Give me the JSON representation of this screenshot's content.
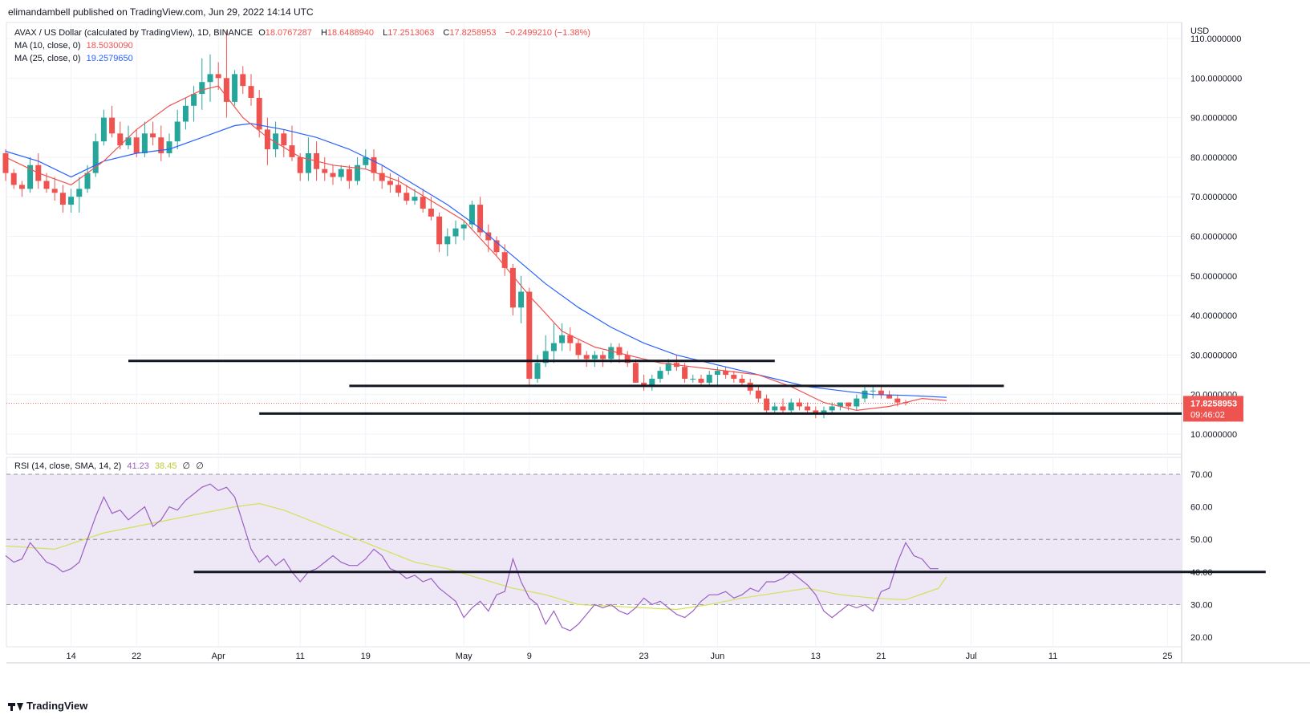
{
  "header": {
    "publisher": "elimandambell published on TradingView.com, Jun 29, 2022 14:14 UTC"
  },
  "legend": {
    "symbol": "AVAX / US Dollar (calculated by TradingView), 1D, BINANCE",
    "o_label": "O",
    "o": "18.0767287",
    "h_label": "H",
    "h": "18.6488940",
    "l_label": "L",
    "l": "17.2513063",
    "c_label": "C",
    "c": "17.8258953",
    "change": "−0.2499210 (−1.38%)",
    "ma10_label": "MA (10, close, 0)",
    "ma10_value": "18.5030090",
    "ma25_label": "MA (25, close, 0)",
    "ma25_value": "19.2579650",
    "rsi_label": "RSI (14, close, SMA, 14, 2)",
    "rsi_value": "41.23",
    "rsi_sma_value": "38.45",
    "rsi_extra1": "∅",
    "rsi_extra2": "∅"
  },
  "price_axis": {
    "currency": "USD",
    "last_price": "17.8258953",
    "countdown": "09:46:02"
  },
  "footer": {
    "brand": "TradingView"
  },
  "colors": {
    "up": "#26a69a",
    "down": "#ef5350",
    "ma10": "#ef5350",
    "ma25": "#2962ff",
    "rsi": "#9c5fc4",
    "rsi_sma": "#d4e157",
    "rsi_band": "#ede7f6",
    "price_label": "#ef5350"
  },
  "chart_data": [
    {
      "type": "candlestick",
      "title": "AVAX / US Dollar (calculated by TradingView), 1D, BINANCE",
      "ylim": [
        8,
        112
      ],
      "y_ticks": [
        "10.0000000",
        "20.0000000",
        "30.0000000",
        "40.0000000",
        "50.0000000",
        "60.0000000",
        "70.0000000",
        "80.0000000",
        "90.0000000",
        "100.0000000",
        "110.0000000"
      ],
      "y_tick_values": [
        10,
        20,
        30,
        40,
        50,
        60,
        70,
        80,
        90,
        100,
        110
      ],
      "x_ticks": [
        "14",
        "22",
        "Apr",
        "11",
        "19",
        "May",
        "9",
        "23",
        "Jun",
        "13",
        "21",
        "Jul",
        "11",
        "25"
      ],
      "x_tick_days": [
        14,
        22,
        32,
        42,
        50,
        62,
        70,
        84,
        93,
        105,
        113,
        124,
        134,
        148
      ],
      "first_day": 6,
      "ohlc": [
        [
          81,
          82,
          74,
          76
        ],
        [
          76,
          77,
          72,
          73
        ],
        [
          73,
          74,
          70,
          72
        ],
        [
          72,
          80,
          71,
          78
        ],
        [
          78,
          81,
          72,
          74
        ],
        [
          74,
          76,
          71,
          72
        ],
        [
          72,
          75,
          69,
          71
        ],
        [
          71,
          73,
          66,
          68
        ],
        [
          68,
          72,
          66,
          70
        ],
        [
          70,
          75,
          66,
          72
        ],
        [
          72,
          78,
          71,
          76
        ],
        [
          76,
          86,
          75,
          84
        ],
        [
          84,
          92,
          83,
          90
        ],
        [
          90,
          93,
          85,
          86
        ],
        [
          86,
          89,
          82,
          83
        ],
        [
          83,
          88,
          82,
          85
        ],
        [
          85,
          87,
          80,
          81
        ],
        [
          81,
          89,
          80,
          86
        ],
        [
          86,
          89,
          83,
          85
        ],
        [
          85,
          88,
          79,
          81
        ],
        [
          81,
          86,
          80,
          84
        ],
        [
          84,
          92,
          82,
          89
        ],
        [
          89,
          95,
          87,
          93
        ],
        [
          93,
          98,
          89,
          96
        ],
        [
          96,
          105,
          92,
          99
        ],
        [
          99,
          106,
          94,
          101
        ],
        [
          101,
          104,
          97,
          100
        ],
        [
          100,
          112,
          90,
          94
        ],
        [
          94,
          102,
          93,
          101
        ],
        [
          101,
          103,
          96,
          98
        ],
        [
          98,
          101,
          93,
          95
        ],
        [
          95,
          97,
          85,
          87
        ],
        [
          87,
          90,
          78,
          82
        ],
        [
          82,
          89,
          80,
          86
        ],
        [
          86,
          87,
          80,
          83
        ],
        [
          83,
          88,
          79,
          80
        ],
        [
          80,
          81,
          74,
          76
        ],
        [
          76,
          85,
          74,
          81
        ],
        [
          81,
          84,
          74,
          77
        ],
        [
          77,
          80,
          74,
          76
        ],
        [
          76,
          78,
          73,
          75
        ],
        [
          75,
          78,
          74,
          77
        ],
        [
          77,
          78,
          72,
          74
        ],
        [
          74,
          80,
          73,
          78
        ],
        [
          78,
          82,
          77,
          80
        ],
        [
          80,
          82,
          74,
          76
        ],
        [
          76,
          78,
          72,
          74
        ],
        [
          74,
          76,
          71,
          73
        ],
        [
          73,
          75,
          70,
          71
        ],
        [
          71,
          73,
          68,
          69
        ],
        [
          69,
          72,
          68,
          70
        ],
        [
          70,
          72,
          66,
          67
        ],
        [
          67,
          70,
          64,
          65
        ],
        [
          65,
          66,
          56,
          58
        ],
        [
          58,
          62,
          55,
          60
        ],
        [
          60,
          64,
          58,
          62
        ],
        [
          62,
          64,
          59,
          63
        ],
        [
          63,
          69,
          62,
          68
        ],
        [
          68,
          70,
          60,
          61
        ],
        [
          61,
          63,
          56,
          59
        ],
        [
          59,
          60,
          55,
          56
        ],
        [
          56,
          58,
          50,
          52
        ],
        [
          52,
          53,
          40,
          42
        ],
        [
          42,
          50,
          38,
          46
        ],
        [
          46,
          47,
          22,
          24
        ],
        [
          24,
          30,
          23,
          28
        ],
        [
          28,
          35,
          27,
          31
        ],
        [
          31,
          38,
          28,
          33
        ],
        [
          33,
          38,
          31,
          35
        ],
        [
          35,
          37,
          31,
          33
        ],
        [
          33,
          34,
          29,
          30
        ],
        [
          30,
          31,
          27,
          29
        ],
        [
          29,
          31,
          27,
          30
        ],
        [
          30,
          31,
          27,
          29
        ],
        [
          29,
          33,
          28,
          32
        ],
        [
          32,
          33,
          28,
          30
        ],
        [
          30,
          31,
          27,
          28
        ],
        [
          28,
          29,
          23,
          23
        ],
        [
          23,
          25,
          21,
          22
        ],
        [
          22,
          25,
          21,
          24
        ],
        [
          24,
          27,
          23,
          26
        ],
        [
          26,
          29,
          25,
          28
        ],
        [
          28,
          30,
          26,
          27
        ],
        [
          27,
          28,
          23,
          24
        ],
        [
          24,
          25,
          23,
          24
        ],
        [
          24,
          25,
          22,
          23
        ],
        [
          23,
          26,
          22,
          25
        ],
        [
          25,
          27,
          22,
          26
        ],
        [
          26,
          27,
          24,
          25
        ],
        [
          25,
          26,
          23,
          24
        ],
        [
          24,
          25,
          22,
          23
        ],
        [
          23,
          24,
          20,
          21
        ],
        [
          21,
          22,
          18,
          19
        ],
        [
          19,
          20,
          15,
          16
        ],
        [
          16,
          18,
          15,
          17
        ],
        [
          17,
          19,
          15,
          16
        ],
        [
          16,
          19,
          15,
          18
        ],
        [
          18,
          19,
          16,
          17
        ],
        [
          17,
          18,
          15,
          16
        ],
        [
          16,
          17,
          14,
          15
        ],
        [
          15,
          17,
          14,
          16
        ],
        [
          16,
          18,
          15,
          17
        ],
        [
          17,
          18,
          16,
          18
        ],
        [
          18,
          18,
          16,
          17
        ],
        [
          17,
          20,
          16,
          19
        ],
        [
          19,
          22,
          18,
          21
        ],
        [
          21,
          22,
          19,
          21
        ],
        [
          21,
          22,
          19,
          20
        ],
        [
          20,
          21,
          19,
          19
        ],
        [
          19,
          20,
          17,
          18
        ],
        [
          18.08,
          18.65,
          17.25,
          17.83
        ]
      ],
      "ma10": [
        [
          6,
          80
        ],
        [
          10,
          76
        ],
        [
          14,
          73
        ],
        [
          18,
          79
        ],
        [
          22,
          87
        ],
        [
          26,
          93
        ],
        [
          30,
          97
        ],
        [
          32,
          98
        ],
        [
          35,
          90
        ],
        [
          38,
          85
        ],
        [
          42,
          80
        ],
        [
          46,
          78
        ],
        [
          50,
          77
        ],
        [
          54,
          74
        ],
        [
          58,
          69
        ],
        [
          62,
          64
        ],
        [
          66,
          55
        ],
        [
          70,
          45
        ],
        [
          74,
          36
        ],
        [
          78,
          32
        ],
        [
          82,
          30
        ],
        [
          86,
          28
        ],
        [
          90,
          27
        ],
        [
          94,
          26
        ],
        [
          98,
          25
        ],
        [
          102,
          22
        ],
        [
          106,
          18
        ],
        [
          110,
          16
        ],
        [
          114,
          17
        ],
        [
          118,
          19
        ],
        [
          121,
          18.5
        ]
      ],
      "ma25": [
        [
          6,
          81.5
        ],
        [
          10,
          79
        ],
        [
          14,
          75
        ],
        [
          18,
          79
        ],
        [
          22,
          81
        ],
        [
          26,
          82
        ],
        [
          30,
          85
        ],
        [
          34,
          88
        ],
        [
          36,
          88.5
        ],
        [
          40,
          87
        ],
        [
          44,
          85
        ],
        [
          48,
          82
        ],
        [
          52,
          78
        ],
        [
          56,
          73
        ],
        [
          60,
          68
        ],
        [
          64,
          62
        ],
        [
          68,
          55
        ],
        [
          72,
          48
        ],
        [
          76,
          42
        ],
        [
          80,
          37
        ],
        [
          84,
          33
        ],
        [
          88,
          30
        ],
        [
          92,
          28
        ],
        [
          96,
          26
        ],
        [
          100,
          24
        ],
        [
          104,
          22
        ],
        [
          108,
          21
        ],
        [
          112,
          20
        ],
        [
          116,
          19.8
        ],
        [
          121,
          19.3
        ]
      ],
      "levels": [
        {
          "value": 28.5,
          "from_day": 21,
          "to_day": 100
        },
        {
          "value": 22.2,
          "from_day": 48,
          "to_day": 128
        },
        {
          "value": 15.2,
          "from_day": 37,
          "to_day": 152
        }
      ]
    },
    {
      "type": "line",
      "title": "RSI (14, close, SMA, 14, 2)",
      "ylim": [
        18,
        74
      ],
      "y_ticks": [
        "20.00",
        "30.00",
        "40.00",
        "50.00",
        "60.00",
        "70.00"
      ],
      "y_tick_values": [
        20,
        30,
        40,
        50,
        60,
        70
      ],
      "bands": {
        "upper": 70,
        "middle": 50,
        "lower": 30
      },
      "series": [
        {
          "id": "rsi",
          "values": [
            45,
            43,
            44,
            49,
            46,
            43,
            42,
            40,
            41,
            43,
            50,
            57,
            63,
            58,
            59,
            56,
            58,
            60,
            54,
            56,
            60,
            59,
            62,
            64,
            66,
            67,
            65,
            66,
            63,
            55,
            47,
            43,
            45,
            42,
            44,
            40,
            37,
            40,
            41,
            43,
            45,
            43,
            42,
            42,
            44,
            47,
            45,
            41,
            40,
            38,
            39,
            37,
            38,
            35,
            33,
            31,
            26,
            29,
            31,
            28,
            33,
            34,
            44,
            37,
            32,
            30,
            24,
            28,
            23,
            22,
            24,
            27,
            30,
            29,
            30,
            28,
            27,
            29,
            32,
            30,
            31,
            29,
            27,
            26,
            28,
            31,
            33,
            33,
            34,
            32,
            33,
            35,
            34,
            37,
            37,
            38,
            40,
            38,
            36,
            33,
            28,
            26,
            28,
            30,
            29,
            30,
            28,
            34,
            35,
            43,
            49,
            45,
            44,
            41,
            41
          ]
        },
        {
          "id": "rsi-sma",
          "points": [
            [
              6,
              48
            ],
            [
              12,
              47
            ],
            [
              18,
              52
            ],
            [
              24,
              55
            ],
            [
              30,
              58
            ],
            [
              34,
              60
            ],
            [
              37,
              61
            ],
            [
              40,
              59
            ],
            [
              44,
              55
            ],
            [
              48,
              51
            ],
            [
              52,
              47
            ],
            [
              56,
              43
            ],
            [
              60,
              41
            ],
            [
              64,
              38
            ],
            [
              68,
              35
            ],
            [
              72,
              33
            ],
            [
              76,
              30
            ],
            [
              80,
              29.5
            ],
            [
              84,
              29
            ],
            [
              88,
              28.5
            ],
            [
              92,
              30
            ],
            [
              96,
              32
            ],
            [
              100,
              33.5
            ],
            [
              104,
              35
            ],
            [
              108,
              33
            ],
            [
              112,
              32
            ],
            [
              116,
              31.5
            ],
            [
              120,
              35
            ],
            [
              121,
              38.5
            ]
          ]
        }
      ],
      "levels": [
        {
          "value": 40,
          "from_day": 29,
          "to_day": 160
        }
      ]
    }
  ]
}
